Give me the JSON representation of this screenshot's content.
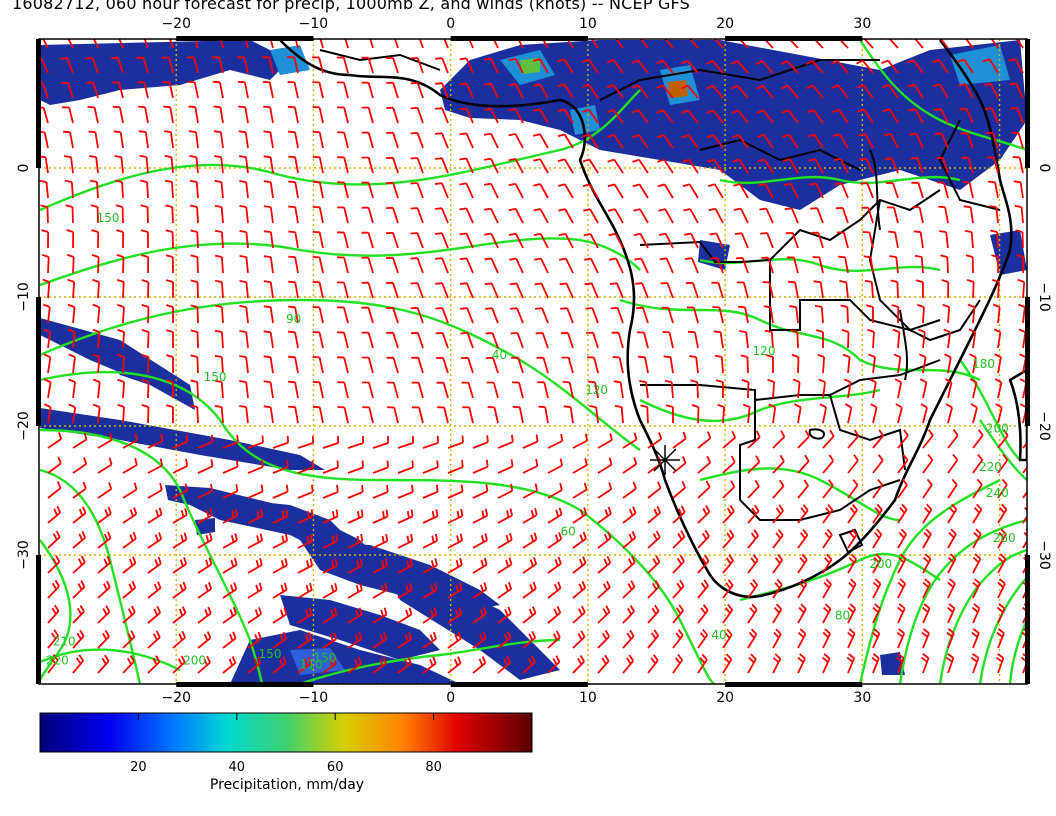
{
  "title": "16082712, 060 hour forecast for precip, 1000mb Z, and winds (knots) -- NCEP GFS",
  "map": {
    "lon_range": [
      -30,
      42
    ],
    "lat_range": [
      -40,
      10
    ],
    "lon_ticks": [
      {
        "value": -20,
        "label": "−20"
      },
      {
        "value": -10,
        "label": "−10"
      },
      {
        "value": 0,
        "label": "0"
      },
      {
        "value": 10,
        "label": "10"
      },
      {
        "value": 20,
        "label": "20"
      },
      {
        "value": 30,
        "label": "30"
      }
    ],
    "lat_ticks": [
      {
        "value": 0,
        "label": "0"
      },
      {
        "value": -10,
        "label": "−10"
      },
      {
        "value": -20,
        "label": "−20"
      },
      {
        "value": -30,
        "label": "−30"
      }
    ],
    "colors": {
      "contour": "#22e022",
      "wind_barb": "#ff0000",
      "coastline": "#000000",
      "grid": "#d4b400",
      "precip_main": "#1c2f9e"
    },
    "contour_labels": [
      {
        "text": "150",
        "lon": -25.8,
        "lat": -4.2
      },
      {
        "text": "90",
        "lon": -12,
        "lat": -12
      },
      {
        "text": "150",
        "lon": -18,
        "lat": -16.5
      },
      {
        "text": "40",
        "lon": 3,
        "lat": -14.8
      },
      {
        "text": "120",
        "lon": 9.8,
        "lat": -17.5
      },
      {
        "text": "60",
        "lon": 8,
        "lat": -28.5
      },
      {
        "text": "120",
        "lon": 22,
        "lat": -14.5
      },
      {
        "text": "180",
        "lon": 38,
        "lat": -15.5
      },
      {
        "text": "200",
        "lon": 39,
        "lat": -20.5
      },
      {
        "text": "220",
        "lon": 38.5,
        "lat": -23.5
      },
      {
        "text": "240",
        "lon": 39,
        "lat": -25.5
      },
      {
        "text": "260",
        "lon": 39.5,
        "lat": -29
      },
      {
        "text": "200",
        "lon": 30.5,
        "lat": -31
      },
      {
        "text": "40",
        "lon": 19,
        "lat": -36.5
      },
      {
        "text": "80",
        "lon": 28,
        "lat": -35
      },
      {
        "text": "210",
        "lon": -29,
        "lat": -37
      },
      {
        "text": "220",
        "lon": -29.5,
        "lat": -38.5
      },
      {
        "text": "200",
        "lon": -19.5,
        "lat": -38.5
      },
      {
        "text": "150",
        "lon": -14,
        "lat": -38
      },
      {
        "text": "110",
        "lon": -11,
        "lat": -38.8
      },
      {
        "text": "150",
        "lon": -10,
        "lat": -38.3
      }
    ]
  },
  "colorbar": {
    "label": "Precipitation, mm/day",
    "ticks": [
      "20",
      "40",
      "60",
      "80"
    ],
    "range": [
      0,
      100
    ]
  }
}
